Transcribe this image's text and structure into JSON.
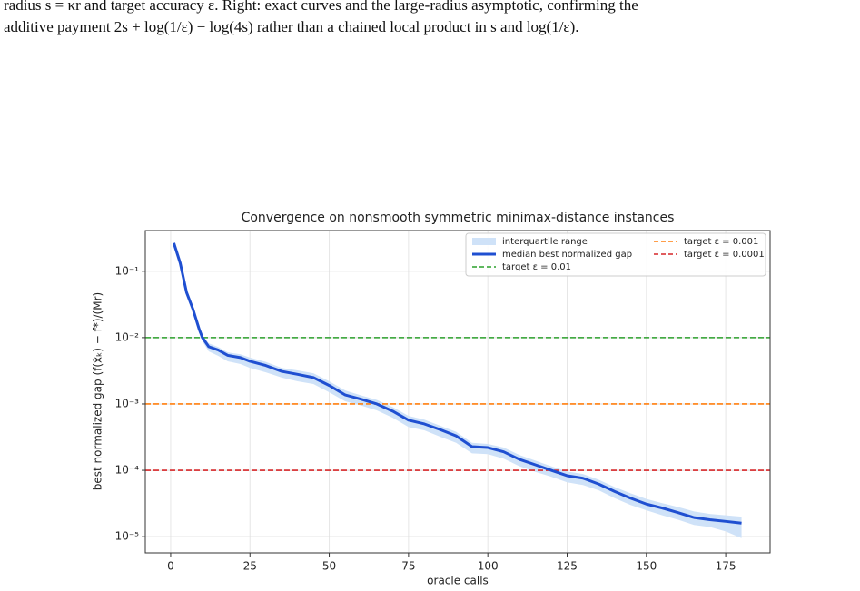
{
  "caption": [
    "radius s = κr and target accuracy ε. Right: exact curves and the large-radius asymptotic, confirming the",
    "additive payment 2s + log(1/ε) − log(4s) rather than a chained local product in s and log(1/ε)."
  ],
  "chart_data": {
    "type": "line",
    "title": "Convergence on nonsmooth symmetric minimax-distance instances",
    "xlabel": "oracle calls",
    "ylabel": "best normalized gap (f(x̂ₖ) − f*)/(Mr)",
    "x": [
      1,
      3,
      5,
      7,
      9,
      10,
      12,
      15,
      18,
      22,
      25,
      30,
      35,
      40,
      45,
      50,
      55,
      60,
      65,
      70,
      75,
      80,
      85,
      90,
      95,
      100,
      105,
      110,
      115,
      120,
      125,
      130,
      135,
      140,
      145,
      150,
      155,
      160,
      165,
      170,
      175,
      180
    ],
    "band": {
      "name": "interquartile range",
      "color": "#cfe2f8",
      "lower": [
        0.26,
        0.13,
        0.046,
        0.025,
        0.012,
        0.0088,
        0.0062,
        0.0053,
        0.0044,
        0.004,
        0.0035,
        0.003,
        0.0025,
        0.0022,
        0.002,
        0.0015,
        0.0011,
        0.00095,
        0.0008,
        0.00062,
        0.00045,
        0.0004,
        0.00032,
        0.00026,
        0.00018,
        0.000175,
        0.00015,
        0.000115,
        9.5e-05,
        8e-05,
        6.6e-05,
        6e-05,
        5e-05,
        3.8e-05,
        3e-05,
        2.5e-05,
        2.1e-05,
        1.8e-05,
        1.5e-05,
        1.4e-05,
        1.2e-05,
        9.5e-06
      ],
      "upper": [
        0.27,
        0.135,
        0.05,
        0.029,
        0.0145,
        0.011,
        0.0082,
        0.0072,
        0.006,
        0.0056,
        0.005,
        0.0043,
        0.0035,
        0.0032,
        0.0029,
        0.0022,
        0.0016,
        0.00135,
        0.00115,
        0.0009,
        0.00066,
        0.00058,
        0.00047,
        0.00038,
        0.00026,
        0.00025,
        0.00022,
        0.00017,
        0.00014,
        0.000115,
        9.6e-05,
        8.8e-05,
        7.2e-05,
        5.6e-05,
        4.5e-05,
        3.7e-05,
        3.2e-05,
        2.8e-05,
        2.4e-05,
        2.2e-05,
        2.1e-05,
        2e-05
      ]
    },
    "series": [
      {
        "name": "median best normalized gap",
        "color": "#1f4fd1",
        "values": [
          0.266,
          0.133,
          0.048,
          0.027,
          0.0133,
          0.01,
          0.0073,
          0.0065,
          0.0054,
          0.005,
          0.0044,
          0.0038,
          0.0031,
          0.0028,
          0.0025,
          0.0019,
          0.00137,
          0.00118,
          0.001,
          0.00078,
          0.00057,
          0.0005,
          0.00041,
          0.00033,
          0.000227,
          0.00022,
          0.00019,
          0.000146,
          0.000121,
          0.0001,
          8.3e-05,
          7.6e-05,
          6.2e-05,
          4.8e-05,
          3.8e-05,
          3.1e-05,
          2.7e-05,
          2.3e-05,
          1.94e-05,
          1.8e-05,
          1.7e-05,
          1.6e-05
        ]
      }
    ],
    "hlines": [
      {
        "name": "target ε = 0.01",
        "value": 0.01,
        "color": "#2ca02c"
      },
      {
        "name": "target ε = 0.001",
        "value": 0.001,
        "color": "#ff7f0e"
      },
      {
        "name": "target ε = 0.0001",
        "value": 0.0001,
        "color": "#d62728"
      }
    ],
    "xlim": [
      -8,
      189
    ],
    "ylim": [
      5.7e-06,
      0.41
    ],
    "xticks": [
      0,
      25,
      50,
      75,
      100,
      125,
      150,
      175
    ],
    "yticks": [
      {
        "value": 1e-05,
        "label": "10⁻⁵"
      },
      {
        "value": 0.0001,
        "label": "10⁻⁴"
      },
      {
        "value": 0.001,
        "label": "10⁻³"
      },
      {
        "value": 0.01,
        "label": "10⁻²"
      },
      {
        "value": 0.1,
        "label": "10⁻¹"
      }
    ],
    "log_y": true,
    "grid": true,
    "legend": "upper right"
  }
}
